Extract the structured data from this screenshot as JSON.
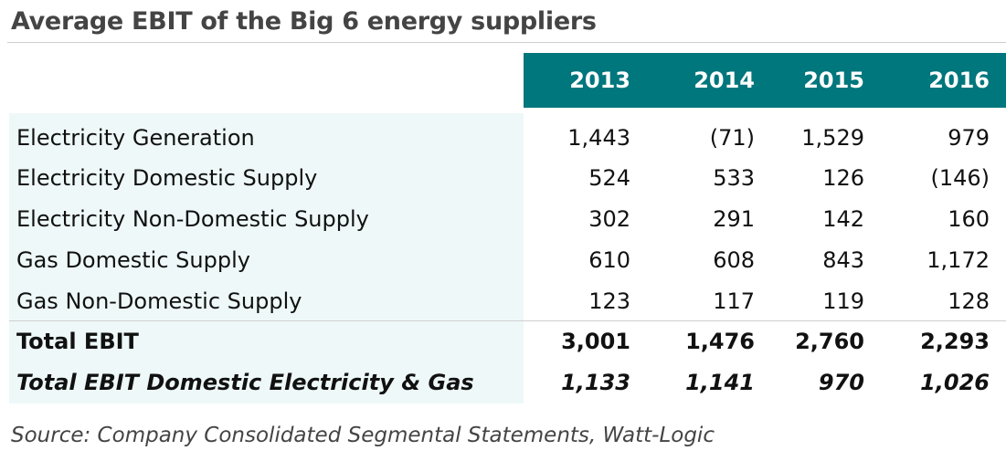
{
  "chart_data": {
    "type": "table",
    "title": "Average EBIT of the Big 6 energy suppliers",
    "columns": [
      "2013",
      "2014",
      "2015",
      "2016"
    ],
    "rows": [
      {
        "label": "Electricity Generation",
        "values": [
          "1,443",
          "(71)",
          "1,529",
          "979"
        ],
        "style": "normal"
      },
      {
        "label": "Electricity Domestic Supply",
        "values": [
          "524",
          "533",
          "126",
          "(146)"
        ],
        "style": "normal"
      },
      {
        "label": "Electricity Non-Domestic Supply",
        "values": [
          "302",
          "291",
          "142",
          "160"
        ],
        "style": "normal"
      },
      {
        "label": "Gas Domestic Supply",
        "values": [
          "610",
          "608",
          "843",
          "1,172"
        ],
        "style": "normal"
      },
      {
        "label": "Gas Non-Domestic Supply",
        "values": [
          "123",
          "117",
          "119",
          "128"
        ],
        "style": "normal"
      },
      {
        "label": "Total EBIT",
        "values": [
          "3,001",
          "1,476",
          "2,760",
          "2,293"
        ],
        "style": "bold"
      },
      {
        "label": "Total EBIT Domestic Electricity & Gas",
        "values": [
          "1,133",
          "1,141",
          "970",
          "1,026"
        ],
        "style": "bold-italic"
      }
    ],
    "source": "Source: Company Consolidated Segmental Statements, Watt-Logic",
    "colors": {
      "header_background": "#00767d",
      "header_text": "#ffffff",
      "label_background": "#eef8f8",
      "title_text": "#444444"
    }
  }
}
